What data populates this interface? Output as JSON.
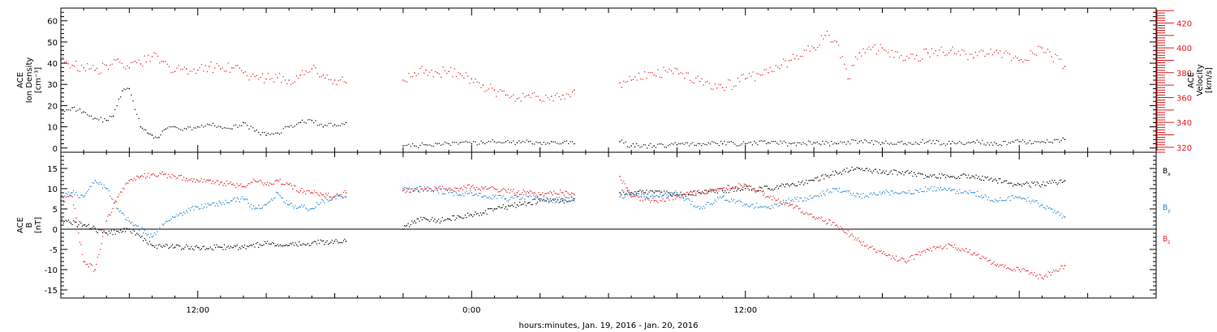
{
  "chart_data": [
    {
      "type": "scatter",
      "panel": "plasma",
      "ylabel_left": [
        "ACE",
        "Ion Density",
        "[cm⁻³]"
      ],
      "ylabel_right": [
        "ACE",
        "Velocity",
        "[km/s]"
      ],
      "ylim_left": [
        -2,
        66
      ],
      "yticks_left": [
        0,
        10,
        20,
        30,
        40,
        50,
        60
      ],
      "ylim_right": [
        316,
        432
      ],
      "yticks_right": [
        320,
        340,
        360,
        380,
        400,
        420
      ],
      "x_unit": "hours since Jan. 19, 2016 00:00",
      "series": [
        {
          "name": "Ion Density",
          "axis": "left",
          "color": "#000000",
          "segments": [
            {
              "x": [
                6,
                6.5,
                7,
                7.5,
                8,
                8.3,
                8.7,
                9,
                9.5,
                9.8,
                10,
                10.3,
                10.6,
                11,
                11.5,
                12,
                12.5,
                13,
                13.5,
                14,
                14.5,
                15,
                15.5,
                16,
                16.5,
                17,
                17.5,
                18,
                18.5
              ],
              "y": [
                18,
                19,
                17,
                14,
                13,
                15,
                27,
                28,
                10,
                7,
                6,
                5,
                9,
                10,
                9,
                10,
                11,
                10,
                9,
                12,
                8,
                6,
                7,
                10,
                12,
                13,
                10,
                11,
                12
              ]
            },
            {
              "x": [
                21,
                21.5,
                22,
                22.5,
                23,
                23.5,
                24,
                24.5,
                25,
                25.5,
                26,
                26.5,
                27,
                27.5,
                28,
                28.5
              ],
              "y": [
                1,
                1,
                1.5,
                2,
                2,
                2.5,
                2,
                2.5,
                3,
                3,
                2.5,
                3,
                2.5,
                3,
                2.5,
                2
              ]
            },
            {
              "x": [
                30.5,
                31,
                32,
                33,
                34,
                35,
                36,
                37,
                38,
                39,
                40,
                40.5,
                41,
                42,
                43,
                44,
                45,
                46,
                47,
                48,
                49,
                50
              ],
              "y": [
                3,
                1,
                1,
                1.5,
                2,
                2,
                2,
                2.5,
                2,
                2.5,
                2,
                3,
                3,
                2.5,
                2,
                3,
                2,
                3,
                2,
                3,
                3,
                4
              ]
            }
          ]
        },
        {
          "name": "Velocity",
          "axis": "right",
          "color": "#e31a1c",
          "segments": [
            {
              "x": [
                6,
                6.5,
                7,
                7.5,
                8,
                8.5,
                9,
                9.5,
                10,
                10.5,
                11,
                11.5,
                12,
                12.5,
                13,
                13.5,
                14,
                14.5,
                15,
                15.5,
                16,
                16.5,
                17,
                17.5,
                18,
                18.5
              ],
              "y": [
                390,
                386,
                384,
                382,
                386,
                391,
                384,
                387,
                393,
                389,
                381,
                383,
                382,
                385,
                383,
                384,
                380,
                377,
                375,
                376,
                374,
                378,
                383,
                378,
                374,
                372
              ]
            },
            {
              "x": [
                21,
                21.5,
                22,
                22.5,
                23,
                23.5,
                24,
                24.5,
                25,
                25.5,
                26,
                26.5,
                27,
                27.5,
                28,
                28.5
              ],
              "y": [
                374,
                380,
                382,
                380,
                381,
                379,
                375,
                370,
                366,
                362,
                359,
                362,
                358,
                361,
                362,
                366
              ]
            },
            {
              "x": [
                30.5,
                31,
                32,
                33,
                34,
                35,
                36,
                37,
                38,
                39,
                39.5,
                40,
                40.5,
                41,
                42,
                43,
                44,
                45,
                46,
                47,
                48,
                49,
                50
              ],
              "y": [
                372,
                374,
                378,
                383,
                373,
                368,
                375,
                380,
                390,
                400,
                410,
                405,
                375,
                396,
                400,
                390,
                396,
                398,
                392,
                398,
                390,
                400,
                385
              ]
            }
          ]
        }
      ]
    },
    {
      "type": "scatter",
      "panel": "magnetic field",
      "ylabel_left": [
        "ACE",
        "B",
        "[nT]"
      ],
      "ylim": [
        -17,
        19
      ],
      "yticks": [
        -15,
        -10,
        -5,
        0,
        5,
        10,
        15
      ],
      "zero_line": true,
      "x_unit": "hours since Jan. 19, 2016 00:00",
      "xlim": [
        6,
        54
      ],
      "xticks": [
        {
          "x": 12,
          "label": "12:00"
        },
        {
          "x": 24,
          "label": "0:00"
        },
        {
          "x": 36,
          "label": "12:00"
        }
      ],
      "xlabel": "hours:minutes, Jan. 19, 2016 - Jan. 20, 2016",
      "legend_position": "right",
      "series": [
        {
          "name": "Bx",
          "name_main": "B",
          "name_sub": "x",
          "color": "#000000",
          "segments": [
            {
              "x": [
                6,
                7,
                8,
                9,
                10,
                11,
                12,
                13,
                14,
                15,
                16,
                17,
                18,
                18.5
              ],
              "y": [
                2,
                1,
                -1,
                0,
                -4,
                -4.5,
                -4.5,
                -4.5,
                -4.5,
                -3.5,
                -4,
                -3.5,
                -3,
                -3
              ]
            },
            {
              "x": [
                21,
                21.5,
                22,
                22.5,
                23,
                23.5,
                24,
                24.5,
                25,
                25.5,
                26,
                26.5,
                27,
                27.5,
                28,
                28.5
              ],
              "y": [
                0,
                2,
                2.5,
                2,
                2.5,
                3,
                3.5,
                4,
                5,
                5.5,
                6,
                6.5,
                7,
                7,
                7,
                7.5
              ]
            },
            {
              "x": [
                30.5,
                31,
                32,
                33,
                34,
                35,
                36,
                37,
                38,
                39,
                40,
                41,
                42,
                43,
                44,
                45,
                46,
                47,
                48,
                49,
                50
              ],
              "y": [
                9,
                9,
                9,
                8.5,
                9,
                9.5,
                10,
                10,
                11,
                12,
                14,
                15,
                14,
                14,
                13,
                13,
                13,
                12,
                11,
                11,
                12
              ]
            }
          ]
        },
        {
          "name": "By",
          "name_main": "B",
          "name_sub": "y",
          "color": "#1a7fd1",
          "segments": [
            {
              "x": [
                6,
                6.5,
                7,
                7.5,
                8,
                8.5,
                9,
                9.5,
                10,
                10.5,
                11,
                11.5,
                12,
                12.5,
                13,
                13.5,
                14,
                14.5,
                15,
                15.5,
                16,
                16.5,
                17,
                17.5,
                18,
                18.5
              ],
              "y": [
                8,
                9,
                8,
                12,
                10,
                5,
                2,
                0,
                -2,
                1,
                3,
                4.5,
                5.5,
                6,
                6.5,
                7,
                7.5,
                5,
                6,
                9,
                6,
                5.5,
                5,
                7,
                8,
                8
              ]
            },
            {
              "x": [
                21,
                21.5,
                22,
                22.5,
                23,
                23.5,
                24,
                24.5,
                25,
                25.5,
                26,
                26.5,
                27,
                27.5,
                28,
                28.5
              ],
              "y": [
                10,
                10,
                10,
                9.5,
                9,
                8.5,
                9,
                8,
                8,
                7.5,
                8,
                8,
                7.5,
                7,
                7.5,
                7
              ]
            },
            {
              "x": [
                30.5,
                31,
                32,
                33,
                34,
                35,
                36,
                37,
                38,
                39,
                40,
                41,
                42,
                43,
                44,
                45,
                46,
                47,
                48,
                49,
                50
              ],
              "y": [
                8,
                8.5,
                8,
                9,
                5,
                8,
                6,
                5.5,
                7,
                8,
                10,
                8,
                9,
                9,
                10,
                9.5,
                9,
                7,
                8,
                6,
                3
              ]
            }
          ]
        },
        {
          "name": "Bz",
          "name_main": "B",
          "name_sub": "z",
          "color": "#e31a1c",
          "segments": [
            {
              "x": [
                6,
                6.5,
                7,
                7.5,
                8,
                8.5,
                9,
                9.5,
                10,
                10.5,
                11,
                11.5,
                12,
                12.5,
                13,
                13.5,
                14,
                14.5,
                15,
                15.5,
                16,
                16.5,
                17,
                17.5,
                18,
                18.5
              ],
              "y": [
                7,
                8,
                -8,
                -10,
                2,
                8,
                12,
                13,
                13.5,
                13.5,
                13,
                12.5,
                12,
                12,
                11.5,
                11,
                10.5,
                12,
                11,
                12,
                11,
                9.5,
                9,
                8.5,
                8,
                9
              ]
            },
            {
              "x": [
                21,
                21.5,
                22,
                22.5,
                23,
                23.5,
                24,
                24.5,
                25,
                25.5,
                26,
                26.5,
                27,
                27.5,
                28,
                28.5
              ],
              "y": [
                9.5,
                9.5,
                10,
                10,
                10,
                10,
                10.5,
                10,
                10,
                9.5,
                9,
                9,
                8.5,
                9,
                9,
                8.5
              ]
            },
            {
              "x": [
                30.5,
                31,
                32,
                33,
                34,
                35,
                36,
                37,
                38,
                39,
                40,
                41,
                42,
                43,
                44,
                45,
                46,
                47,
                48,
                49,
                50
              ],
              "y": [
                13,
                8,
                7,
                8,
                9,
                10,
                11,
                8,
                6,
                3,
                1,
                -3,
                -6,
                -8,
                -5,
                -4,
                -6,
                -9,
                -10,
                -12,
                -9
              ]
            }
          ]
        }
      ]
    }
  ]
}
